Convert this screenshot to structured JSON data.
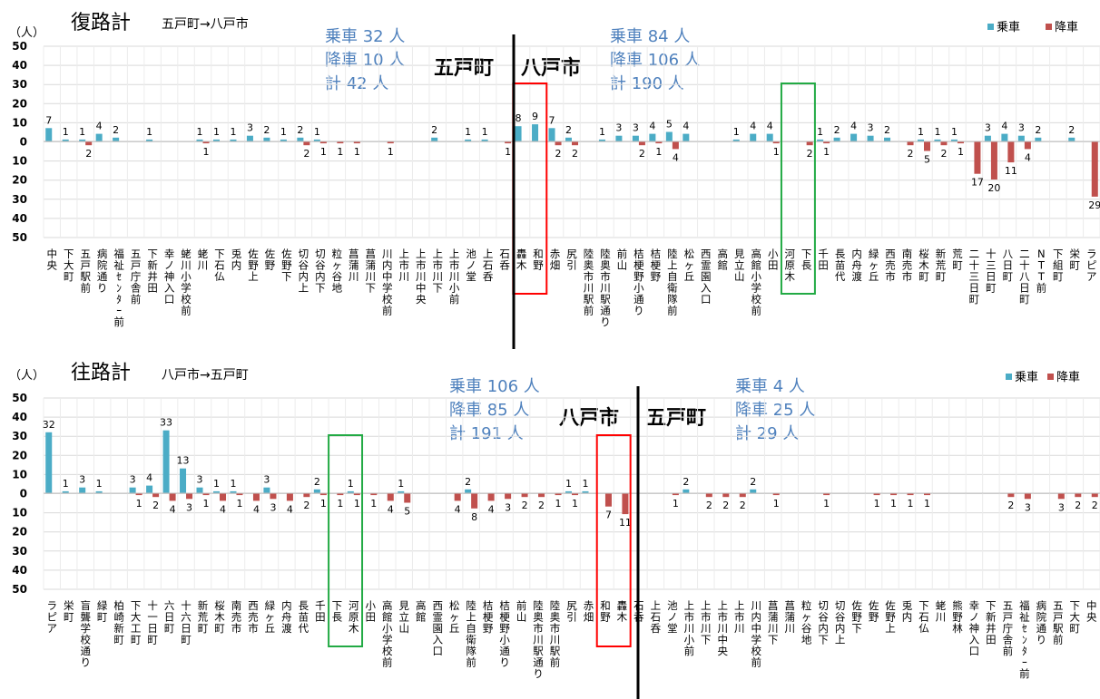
{
  "legend": {
    "boarding": "乗車",
    "alighting": "降車",
    "colors": {
      "boarding": "#4bacc6",
      "alighting": "#c0504d"
    }
  },
  "unit": "（人）",
  "chart_data": [
    {
      "type": "bar",
      "title": "復路計",
      "subtitle": "五戸町→八戸市",
      "ylabel": "（人）",
      "ylim": [
        -50,
        50
      ],
      "yticks": [
        "50",
        "40",
        "30",
        "20",
        "10",
        "0",
        "10",
        "20",
        "30",
        "40",
        "50"
      ],
      "legend_placement": "top-right",
      "categories": [
        "中央",
        "下大町",
        "五戸駅前",
        "病院通り",
        "福祉ｾﾝﾀｰ前",
        "五戸庁舎前",
        "下新井田",
        "幸ノ神入口",
        "蛯川小学校前",
        "蛯川",
        "下石仏",
        "兎内",
        "佐野上",
        "佐野",
        "佐野下",
        "切谷内上",
        "切谷内下",
        "粒ヶ谷地",
        "菖蒲川",
        "菖蒲川下",
        "川内中学校前",
        "上市川",
        "上市川中央",
        "上市川下",
        "上市川小前",
        "池ノ堂",
        "上石呑",
        "石呑",
        "轟木",
        "和野",
        "赤畑",
        "尻引",
        "陸奥市川駅前",
        "陸奥市川駅通り",
        "前山",
        "桔梗野小通り",
        "桔梗野",
        "陸上自衛隊前",
        "松ヶ丘",
        "西霊園入口",
        "高館",
        "見立山",
        "高館小学校前",
        "小田",
        "河原木",
        "下長",
        "千田",
        "長苗代",
        "内舟渡",
        "緑ヶ丘",
        "西売市",
        "南売市",
        "桜木町",
        "新荒町",
        "荒町",
        "二十三日町",
        "十三日町",
        "八日町",
        "二十八日町",
        "NTT前",
        "下組町",
        "栄町",
        "ラピア"
      ],
      "series": [
        {
          "name": "乗車",
          "values": [
            7,
            1,
            1,
            4,
            2,
            0,
            1,
            0,
            0,
            1,
            1,
            1,
            3,
            2,
            1,
            2,
            1,
            0,
            0,
            0,
            0,
            0,
            0,
            2,
            0,
            1,
            1,
            0,
            8,
            9,
            7,
            2,
            0,
            1,
            3,
            3,
            4,
            5,
            4,
            0,
            0,
            1,
            4,
            4,
            0,
            0,
            1,
            2,
            4,
            3,
            2,
            0,
            1,
            1,
            1,
            0,
            3,
            4,
            3,
            2,
            0,
            2,
            0
          ]
        },
        {
          "name": "降車",
          "values": [
            0,
            0,
            2,
            0,
            0,
            0,
            0,
            0,
            0,
            1,
            0,
            0,
            0,
            0,
            0,
            2,
            1,
            1,
            1,
            0,
            1,
            0,
            0,
            0,
            0,
            0,
            0,
            1,
            0,
            0,
            2,
            2,
            0,
            0,
            0,
            2,
            1,
            4,
            0,
            0,
            0,
            0,
            0,
            1,
            0,
            2,
            1,
            0,
            0,
            0,
            0,
            2,
            5,
            2,
            1,
            17,
            20,
            11,
            4,
            0,
            0,
            0,
            29
          ]
        }
      ],
      "annotations": [
        {
          "text": "乗車 32 人",
          "group": "left"
        },
        {
          "text": "降車 10 人",
          "group": "left"
        },
        {
          "text": "計 42 人",
          "group": "left"
        },
        {
          "text": "乗車 84 人",
          "group": "right"
        },
        {
          "text": "降車 106 人",
          "group": "right"
        },
        {
          "text": "計 190 人",
          "group": "right"
        }
      ],
      "region_labels": {
        "left": "五戸町",
        "right": "八戸市"
      }
    },
    {
      "type": "bar",
      "title": "往路計",
      "subtitle": "八戸市→五戸町",
      "ylabel": "（人）",
      "ylim": [
        -50,
        50
      ],
      "yticks": [
        "50",
        "40",
        "30",
        "20",
        "10",
        "0",
        "10",
        "20",
        "30",
        "40",
        "50"
      ],
      "legend_placement": "top-right",
      "categories": [
        "ラピア",
        "栄町",
        "盲聾学校通り",
        "緑町",
        "柏崎新町",
        "下大工町",
        "十一日町",
        "六日町",
        "十六日町",
        "新荒町",
        "桜木町",
        "南売市",
        "西売市",
        "緑ヶ丘",
        "内舟渡",
        "長苗代",
        "千田",
        "下長",
        "河原木",
        "小田",
        "高館小学校前",
        "見立山",
        "高館",
        "西霊園入口",
        "松ヶ丘",
        "陸上自衛隊前",
        "桔梗野",
        "桔梗野小通り",
        "前山",
        "陸奥市川駅通り",
        "陸奥市川駅前",
        "尻引",
        "赤畑",
        "和野",
        "轟木",
        "石呑",
        "上石呑",
        "池ノ堂",
        "上市川小前",
        "上市川下",
        "上市川中央",
        "上市川",
        "川内中学校前",
        "菖蒲川下",
        "菖蒲川",
        "粒ヶ谷地",
        "切谷内下",
        "切谷内上",
        "佐野下",
        "佐野",
        "佐野上",
        "兎内",
        "下石仏",
        "蛯川",
        "熊野林",
        "幸ノ神入口",
        "下新井田",
        "五戸庁舎前",
        "福祉ｾﾝﾀｰ前",
        "病院通り",
        "五戸駅前",
        "下大町",
        "中央"
      ],
      "series": [
        {
          "name": "乗車",
          "values": [
            32,
            1,
            3,
            1,
            0,
            3,
            4,
            33,
            13,
            3,
            1,
            1,
            0,
            3,
            0,
            0,
            2,
            0,
            1,
            0,
            0,
            1,
            0,
            0,
            0,
            2,
            0,
            0,
            0,
            0,
            0,
            1,
            1,
            0,
            0,
            0,
            0,
            0,
            2,
            0,
            0,
            0,
            2,
            0,
            0,
            0,
            0,
            0,
            0,
            0,
            0,
            0,
            0,
            0,
            0,
            0,
            0,
            0,
            0,
            0,
            0,
            0,
            0
          ]
        },
        {
          "name": "降車",
          "values": [
            0,
            0,
            0,
            0,
            0,
            1,
            2,
            4,
            3,
            1,
            4,
            1,
            4,
            3,
            4,
            2,
            1,
            1,
            1,
            1,
            4,
            5,
            0,
            0,
            4,
            8,
            4,
            3,
            2,
            2,
            1,
            1,
            0,
            7,
            11,
            0,
            0,
            1,
            0,
            2,
            2,
            2,
            0,
            1,
            0,
            0,
            1,
            0,
            0,
            1,
            1,
            1,
            1,
            0,
            0,
            0,
            0,
            2,
            3,
            0,
            3,
            2,
            2
          ]
        }
      ],
      "annotations": [
        {
          "text": "乗車 106 人",
          "group": "left"
        },
        {
          "text": "降車 85 人",
          "group": "left"
        },
        {
          "text": "計 191 人",
          "group": "left"
        },
        {
          "text": "乗車 4 人",
          "group": "right"
        },
        {
          "text": "降車 25 人",
          "group": "right"
        },
        {
          "text": "計 29 人",
          "group": "right"
        }
      ],
      "region_labels": {
        "left": "八戸市",
        "right": "五戸町"
      }
    }
  ]
}
